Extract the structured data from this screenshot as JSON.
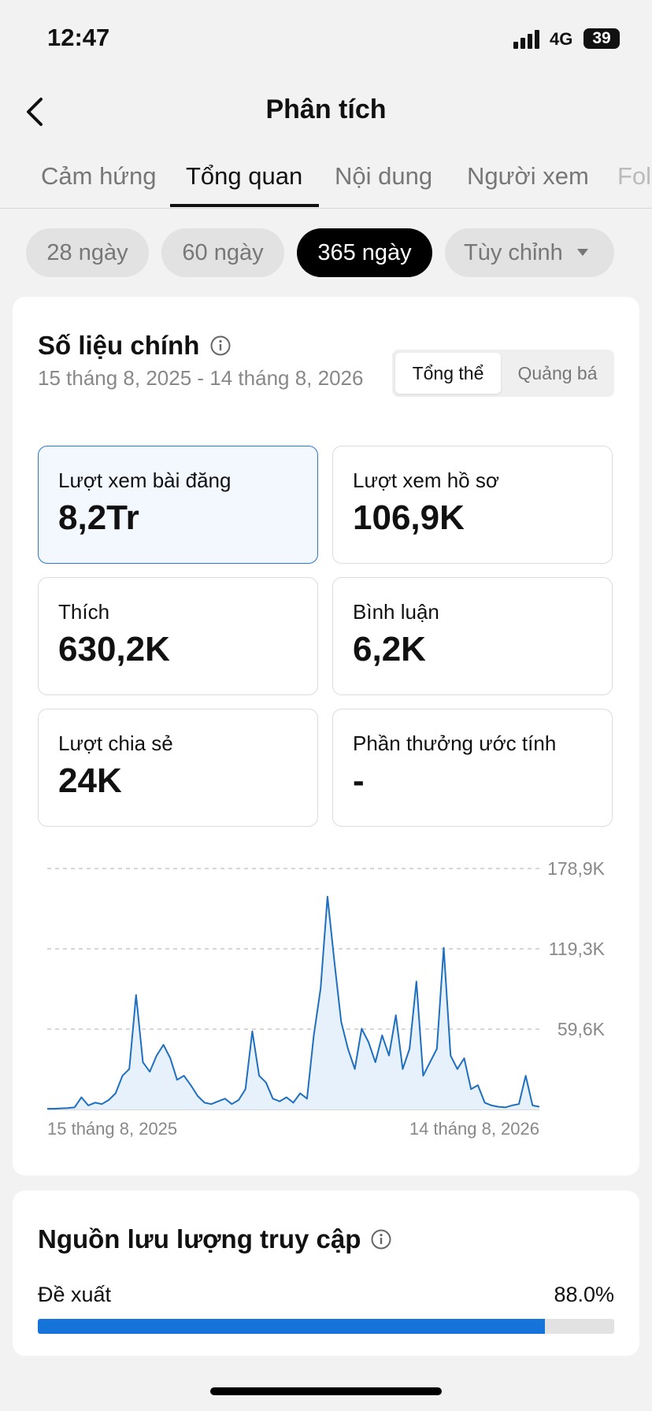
{
  "status_bar": {
    "time": "12:47",
    "network": "4G",
    "battery": "39"
  },
  "header": {
    "title": "Phân tích"
  },
  "tabs": [
    "Cảm hứng",
    "Tổng quan",
    "Nội dung",
    "Người xem",
    "Fol"
  ],
  "ranges": [
    "28 ngày",
    "60 ngày",
    "365 ngày",
    "Tùy chỉnh"
  ],
  "key_metrics": {
    "title": "Số liệu chính",
    "date_range": "15 tháng 8, 2025 - 14 tháng 8, 2026",
    "toggle": [
      "Tổng thể",
      "Quảng bá"
    ],
    "metrics": [
      {
        "label": "Lượt xem bài đăng",
        "value": "8,2Tr"
      },
      {
        "label": "Lượt xem hồ sơ",
        "value": "106,9K"
      },
      {
        "label": "Thích",
        "value": "630,2K"
      },
      {
        "label": "Bình luận",
        "value": "6,2K"
      },
      {
        "label": "Lượt chia sẻ",
        "value": "24K"
      },
      {
        "label": "Phần thưởng ước tính",
        "value": "-"
      }
    ]
  },
  "chart_data": {
    "type": "line",
    "color": "#1f6fc0",
    "area_color": "#e6f1fb",
    "grid": true,
    "categories": [
      "15 tháng 8, 2025",
      null,
      null,
      null,
      null,
      null,
      null,
      null,
      null,
      null,
      null,
      null,
      null,
      null,
      null,
      null,
      null,
      null,
      null,
      null,
      null,
      null,
      null,
      null,
      null,
      null,
      null,
      null,
      null,
      null,
      null,
      null,
      null,
      null,
      null,
      null,
      null,
      null,
      null,
      null,
      null,
      null,
      null,
      null,
      null,
      null,
      null,
      null,
      null,
      null,
      null,
      null,
      null,
      null,
      null,
      null,
      null,
      null,
      null,
      null,
      null,
      null,
      null,
      null,
      null,
      null,
      null,
      null,
      null,
      null,
      null,
      null,
      "14 tháng 8, 2026"
    ],
    "values": [
      500,
      500,
      800,
      1000,
      1500,
      9000,
      3000,
      5000,
      4000,
      7000,
      12000,
      25000,
      30000,
      85000,
      35000,
      28000,
      40000,
      48000,
      38000,
      22000,
      25000,
      18000,
      10000,
      5000,
      4000,
      6000,
      8000,
      4000,
      7000,
      15000,
      58000,
      25000,
      20000,
      8000,
      6000,
      9000,
      5000,
      12000,
      8000,
      55000,
      90000,
      158000,
      110000,
      65000,
      45000,
      30000,
      60000,
      50000,
      35000,
      55000,
      40000,
      70000,
      30000,
      45000,
      95000,
      25000,
      35000,
      45000,
      120000,
      40000,
      30000,
      38000,
      15000,
      18000,
      5000,
      3000,
      2000,
      1500,
      3000,
      4000,
      25000,
      3000,
      2000
    ],
    "ylim": [
      0,
      178900
    ],
    "yticks": [
      {
        "value": 59600,
        "label": "59,6K"
      },
      {
        "value": 119300,
        "label": "119,3K"
      },
      {
        "value": 178900,
        "label": "178,9K"
      }
    ]
  },
  "traffic": {
    "title": "Nguồn lưu lượng truy cập",
    "sources": [
      {
        "name": "Đề xuất",
        "value": 88.0,
        "value_label": "88.0%"
      }
    ]
  }
}
